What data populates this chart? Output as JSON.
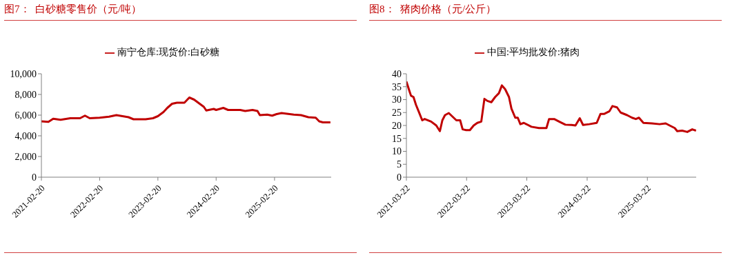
{
  "chart_data": [
    {
      "type": "line",
      "title": "图7：  白砂糖零售价（元/吨）",
      "legend": "top",
      "x": [
        "2021-02-20",
        "2021-04-05",
        "2021-05-05",
        "2021-06-20",
        "2021-08-20",
        "2021-10-20",
        "2021-11-20",
        "2021-12-20",
        "2022-02-20",
        "2022-04-20",
        "2022-06-05",
        "2022-08-20",
        "2022-09-20",
        "2022-12-05",
        "2023-01-20",
        "2023-02-20",
        "2023-03-27",
        "2023-04-20",
        "2023-05-20",
        "2023-06-20",
        "2023-08-05",
        "2023-09-05",
        "2023-10-05",
        "2023-12-05",
        "2023-12-20",
        "2024-02-05",
        "2024-02-20",
        "2024-04-05",
        "2024-05-05",
        "2024-07-20",
        "2024-08-20",
        "2024-10-05",
        "2024-11-05",
        "2024-11-20",
        "2025-01-05",
        "2025-02-05",
        "2025-03-05",
        "2025-04-05",
        "2025-06-20",
        "2025-08-05",
        "2025-09-20",
        "2025-11-05",
        "2025-11-27",
        "2025-12-20",
        "2026-02-05"
      ],
      "series": [
        {
          "name": "南宁仓库:现货价:白砂糖",
          "color": "#c00000",
          "values": [
            5400,
            5350,
            5650,
            5550,
            5700,
            5700,
            5950,
            5700,
            5750,
            5850,
            6000,
            5800,
            5600,
            5600,
            5700,
            5900,
            6300,
            6700,
            7100,
            7200,
            7200,
            7700,
            7500,
            6800,
            6450,
            6600,
            6500,
            6700,
            6500,
            6500,
            6400,
            6500,
            6400,
            6000,
            6050,
            5950,
            6100,
            6200,
            6050,
            6000,
            5800,
            5750,
            5400,
            5300,
            5300
          ]
        }
      ],
      "xlim": [
        "2021-02-20",
        "2026-02-10"
      ],
      "xticks": [
        "2021-02-20",
        "2022-02-20",
        "2023-02-20",
        "2024-02-20",
        "2025-02-20"
      ],
      "ylim": [
        0,
        10000
      ],
      "yticks": [
        0,
        {
          "value": 2000,
          "label": "2,000"
        },
        {
          "value": 4000,
          "label": "4,000"
        },
        {
          "value": 6000,
          "label": "6,000"
        },
        {
          "value": 8000,
          "label": "8,000"
        },
        {
          "value": 10000,
          "label": "10,000"
        }
      ]
    },
    {
      "type": "line",
      "title": "图8：  猪肉价格（元/公斤）",
      "legend": "top",
      "x": [
        "2021-03-22",
        "2021-04-11",
        "2021-04-19",
        "2021-05-04",
        "2021-05-19",
        "2021-06-04",
        "2021-06-26",
        "2021-07-11",
        "2021-08-19",
        "2021-09-19",
        "2021-10-11",
        "2021-10-26",
        "2021-11-11",
        "2021-12-04",
        "2022-01-19",
        "2022-02-11",
        "2022-02-26",
        "2022-03-19",
        "2022-04-11",
        "2022-05-04",
        "2022-05-26",
        "2022-06-19",
        "2022-07-08",
        "2022-07-26",
        "2022-08-19",
        "2022-09-11",
        "2022-10-04",
        "2022-10-22",
        "2022-11-11",
        "2022-12-04",
        "2022-12-19",
        "2023-01-11",
        "2023-01-26",
        "2023-02-11",
        "2023-03-04",
        "2023-04-19",
        "2023-06-04",
        "2023-07-19",
        "2023-08-04",
        "2023-09-04",
        "2023-10-04",
        "2023-11-11",
        "2023-12-19",
        "2024-01-11",
        "2024-02-06",
        "2024-02-26",
        "2024-04-04",
        "2024-05-19",
        "2024-06-11",
        "2024-07-04",
        "2024-08-04",
        "2024-08-22",
        "2024-09-19",
        "2024-10-11",
        "2024-11-19",
        "2024-12-19",
        "2025-01-11",
        "2025-01-30",
        "2025-02-26",
        "2025-04-19",
        "2025-06-04",
        "2025-07-11",
        "2025-08-04",
        "2025-09-04",
        "2025-09-19",
        "2025-10-19",
        "2025-11-19",
        "2025-12-19",
        "2026-01-11"
      ],
      "series": [
        {
          "name": "中国:平均批发价:猪肉",
          "color": "#c00000",
          "values": [
            37,
            33,
            31.5,
            31,
            28,
            25.5,
            22,
            22.5,
            21.5,
            20,
            17.8,
            22,
            24,
            24.8,
            22,
            22,
            18.5,
            18.2,
            18.2,
            20,
            21,
            21.5,
            30.3,
            29.5,
            29,
            31,
            32.5,
            35.5,
            34,
            31,
            26.5,
            23,
            23,
            20.5,
            21,
            19.5,
            19,
            19,
            22.5,
            22.5,
            21.5,
            20.3,
            20.2,
            20,
            22.8,
            20.2,
            20.5,
            21,
            24.5,
            24.5,
            25.5,
            27.5,
            27,
            25,
            24,
            23,
            22.5,
            23,
            21,
            20.8,
            20.5,
            20.8,
            20,
            19,
            17.8,
            18,
            17.5,
            18.5,
            18
          ]
        }
      ],
      "xlim": [
        "2021-03-22",
        "2026-01-12"
      ],
      "xticks": [
        "2021-03-22",
        "2022-03-22",
        "2023-03-22",
        "2024-03-22",
        "2025-03-22"
      ],
      "ylim": [
        0,
        40
      ],
      "yticks": [
        0,
        5,
        10,
        15,
        20,
        25,
        30,
        35,
        40
      ]
    }
  ]
}
